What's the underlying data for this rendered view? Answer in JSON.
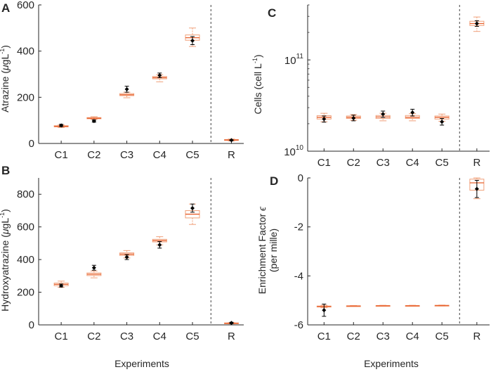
{
  "figure": {
    "xlabel_left": "Experiments",
    "xlabel_right": "Experiments",
    "categories": [
      "C1",
      "C2",
      "C3",
      "C4",
      "C5",
      "R"
    ]
  },
  "colors": {
    "box": "#f0a07a",
    "median": "#e8602c",
    "marker": "#000000",
    "axis": "#262626",
    "divider": "#404040"
  },
  "chart_data": [
    {
      "id": "A",
      "letter": "A",
      "type": "box",
      "ylabel_prefix": "Atrazine (",
      "ylabel_mu": "μ",
      "ylabel_unit": "gL",
      "ylabel_exp": "-1",
      "ylabel_suffix": ")",
      "yscale": "linear",
      "ylim": [
        0,
        600
      ],
      "yticks": [
        0,
        200,
        400,
        600
      ],
      "yticklabels": [
        "0",
        "200",
        "400",
        "600"
      ],
      "categories": [
        "C1",
        "C2",
        "C3",
        "C4",
        "C5",
        "R"
      ],
      "boxes": [
        {
          "q1": 72,
          "median": 74,
          "q3": 77,
          "whisker_low": 69,
          "whisker_high": 80
        },
        {
          "q1": 107,
          "median": 109,
          "q3": 112,
          "whisker_low": 104,
          "whisker_high": 116
        },
        {
          "q1": 207,
          "median": 211,
          "q3": 216,
          "whisker_low": 198,
          "whisker_high": 222
        },
        {
          "q1": 280,
          "median": 285,
          "q3": 290,
          "whisker_low": 267,
          "whisker_high": 298
        },
        {
          "q1": 447,
          "median": 458,
          "q3": 470,
          "whisker_low": 420,
          "whisker_high": 500
        },
        {
          "q1": 13,
          "median": 15,
          "q3": 17,
          "whisker_low": 11,
          "whisker_high": 19
        }
      ],
      "measured": [
        {
          "mean": 78,
          "low": 73,
          "high": 83
        },
        {
          "mean": 97,
          "low": 92,
          "high": 102
        },
        {
          "mean": 235,
          "low": 222,
          "high": 248
        },
        {
          "mean": 295,
          "low": 285,
          "high": 305
        },
        {
          "mean": 445,
          "low": 428,
          "high": 463
        },
        {
          "mean": 14,
          "low": 12,
          "high": 16
        }
      ]
    },
    {
      "id": "B",
      "letter": "B",
      "type": "box",
      "ylabel_prefix": "Hydroxyatrazine (",
      "ylabel_mu": "μ",
      "ylabel_unit": "gL",
      "ylabel_exp": "-1",
      "ylabel_suffix": ")",
      "yscale": "linear",
      "ylim": [
        0,
        900
      ],
      "yticks": [
        0,
        200,
        400,
        600,
        800
      ],
      "yticklabels": [
        "0",
        "200",
        "400",
        "600",
        "800"
      ],
      "categories": [
        "C1",
        "C2",
        "C3",
        "C4",
        "C5",
        "R"
      ],
      "boxes": [
        {
          "q1": 240,
          "median": 248,
          "q3": 256,
          "whisker_low": 230,
          "whisker_high": 268
        },
        {
          "q1": 302,
          "median": 310,
          "q3": 318,
          "whisker_low": 288,
          "whisker_high": 330
        },
        {
          "q1": 425,
          "median": 433,
          "q3": 441,
          "whisker_low": 410,
          "whisker_high": 455
        },
        {
          "q1": 508,
          "median": 516,
          "q3": 524,
          "whisker_low": 490,
          "whisker_high": 540
        },
        {
          "q1": 655,
          "median": 678,
          "q3": 700,
          "whisker_low": 615,
          "whisker_high": 740
        },
        {
          "q1": 8,
          "median": 10,
          "q3": 12,
          "whisker_low": 6,
          "whisker_high": 14
        }
      ],
      "measured": [
        {
          "mean": 240,
          "low": 232,
          "high": 250
        },
        {
          "mean": 350,
          "low": 335,
          "high": 365
        },
        {
          "mean": 415,
          "low": 400,
          "high": 430
        },
        {
          "mean": 490,
          "low": 470,
          "high": 510
        },
        {
          "mean": 715,
          "low": 690,
          "high": 740
        },
        {
          "mean": 12,
          "low": 8,
          "high": 16
        }
      ]
    },
    {
      "id": "C",
      "letter": "C",
      "type": "box",
      "ylabel_prefix": "Cells (cell L",
      "ylabel_exp": "-1",
      "ylabel_suffix": ")",
      "yscale": "log",
      "ylim": [
        10000000000,
        400000000000
      ],
      "yticks": [
        10000000000,
        100000000000
      ],
      "ytick_base": "10",
      "ytick_exponents": [
        "10",
        "11"
      ],
      "categories": [
        "C1",
        "C2",
        "C3",
        "C4",
        "C5",
        "R"
      ],
      "boxes": [
        {
          "q1": 22500000000,
          "median": 23500000000,
          "q3": 24500000000,
          "whisker_low": 21000000000,
          "whisker_high": 26000000000
        },
        {
          "q1": 22800000000,
          "median": 23500000000,
          "q3": 24300000000,
          "whisker_low": 21800000000,
          "whisker_high": 25200000000
        },
        {
          "q1": 22800000000,
          "median": 23700000000,
          "q3": 24600000000,
          "whisker_low": 21500000000,
          "whisker_high": 26000000000
        },
        {
          "q1": 22800000000,
          "median": 23500000000,
          "q3": 24600000000,
          "whisker_low": 21500000000,
          "whisker_high": 25800000000
        },
        {
          "q1": 22500000000,
          "median": 23500000000,
          "q3": 24300000000,
          "whisker_low": 21300000000,
          "whisker_high": 25500000000
        },
        {
          "q1": 238000000000,
          "median": 250000000000,
          "q3": 265000000000,
          "whisker_low": 205000000000,
          "whisker_high": 295000000000
        }
      ],
      "measured": [
        {
          "mean": 22500000000,
          "low": 20800000000,
          "high": 24300000000
        },
        {
          "mean": 23000000000,
          "low": 21500000000,
          "high": 24800000000
        },
        {
          "mean": 25500000000,
          "low": 23500000000,
          "high": 27500000000
        },
        {
          "mean": 26500000000,
          "low": 24300000000,
          "high": 28800000000
        },
        {
          "mean": 21000000000,
          "low": 19300000000,
          "high": 22800000000
        },
        {
          "mean": 250000000000,
          "low": 233000000000,
          "high": 268000000000
        }
      ]
    },
    {
      "id": "D",
      "letter": "D",
      "type": "box",
      "ylabel_line1": "Enrichment Factor ",
      "ylabel_symbol": "ϵ",
      "ylabel_line2": "(per mille)",
      "yscale": "linear",
      "ylim": [
        -6,
        0
      ],
      "yticks": [
        -6,
        -4,
        -2,
        0
      ],
      "yticklabels": [
        "-6",
        "-4",
        "-2",
        "0"
      ],
      "categories": [
        "C1",
        "C2",
        "C3",
        "C4",
        "C5",
        "R"
      ],
      "boxes": [
        {
          "q1": -5.27,
          "median": -5.25,
          "q3": -5.23,
          "whisker_low": -5.3,
          "whisker_high": -5.2
        },
        {
          "q1": -5.24,
          "median": -5.23,
          "q3": -5.22,
          "whisker_low": -5.25,
          "whisker_high": -5.21
        },
        {
          "q1": -5.23,
          "median": -5.22,
          "q3": -5.21,
          "whisker_low": -5.24,
          "whisker_high": -5.2
        },
        {
          "q1": -5.23,
          "median": -5.22,
          "q3": -5.21,
          "whisker_low": -5.24,
          "whisker_high": -5.2
        },
        {
          "q1": -5.22,
          "median": -5.21,
          "q3": -5.2,
          "whisker_low": -5.23,
          "whisker_high": -5.19
        },
        {
          "q1": -0.5,
          "median": -0.2,
          "q3": -0.05,
          "whisker_low": -0.85,
          "whisker_high": 0.0
        }
      ],
      "measured": [
        {
          "mean": -5.4,
          "low": -5.65,
          "high": -5.15
        },
        null,
        null,
        null,
        null,
        {
          "mean": -0.45,
          "low": -0.8,
          "high": -0.1
        }
      ]
    }
  ]
}
